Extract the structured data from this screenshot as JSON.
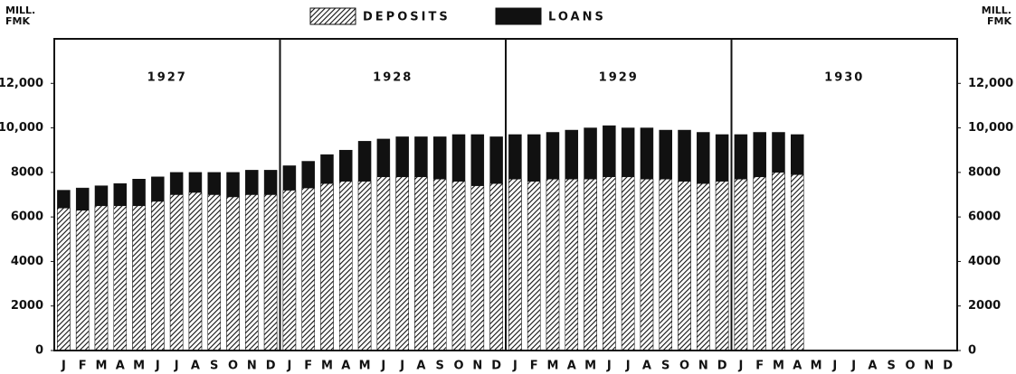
{
  "chart_data": {
    "type": "bar",
    "overlap": true,
    "y_label": "MILL. FMK",
    "y2_label": "MILL. FMK",
    "annotations": [
      "1927",
      "1928",
      "1929",
      "1930"
    ],
    "categories": [
      "J",
      "F",
      "M",
      "A",
      "M",
      "J",
      "J",
      "A",
      "S",
      "O",
      "N",
      "D",
      "J",
      "F",
      "M",
      "A",
      "M",
      "J",
      "J",
      "A",
      "S",
      "O",
      "N",
      "D",
      "J",
      "F",
      "M",
      "A",
      "M",
      "J",
      "J",
      "A",
      "S",
      "O",
      "N",
      "D",
      "J",
      "F",
      "M",
      "A",
      "M",
      "J",
      "J",
      "A",
      "S",
      "O",
      "N",
      "D"
    ],
    "series": [
      {
        "name": "LOANS",
        "color": "#111111",
        "pattern": "solid",
        "values": [
          7200,
          7300,
          7400,
          7500,
          7700,
          7800,
          8000,
          8000,
          8000,
          8000,
          8100,
          8100,
          8300,
          8500,
          8800,
          9000,
          9400,
          9500,
          9600,
          9600,
          9600,
          9700,
          9700,
          9600,
          9700,
          9700,
          9800,
          9900,
          10000,
          10100,
          10000,
          10000,
          9900,
          9900,
          9800,
          9700,
          9700,
          9800,
          9800,
          9700,
          null,
          null,
          null,
          null,
          null,
          null,
          null,
          null
        ]
      },
      {
        "name": "DEPOSITS",
        "color": "#111111",
        "pattern": "hatch",
        "values": [
          6400,
          6300,
          6500,
          6500,
          6500,
          6700,
          7000,
          7100,
          7000,
          6900,
          7000,
          7000,
          7200,
          7300,
          7500,
          7600,
          7600,
          7800,
          7800,
          7800,
          7700,
          7600,
          7400,
          7500,
          7700,
          7600,
          7700,
          7700,
          7700,
          7800,
          7800,
          7700,
          7700,
          7600,
          7500,
          7600,
          7700,
          7800,
          8000,
          7900,
          null,
          null,
          null,
          null,
          null,
          null,
          null,
          null
        ]
      }
    ],
    "legend_order": [
      1,
      0
    ],
    "ylim": [
      0,
      14000
    ],
    "yticks": [
      0,
      2000,
      4000,
      6000,
      8000,
      {
        "value": 10000,
        "label": "10,000"
      },
      {
        "value": 12000,
        "label": "12,000"
      }
    ],
    "y2lim": [
      0,
      14000
    ],
    "y2ticks": [
      0,
      2000,
      4000,
      6000,
      8000,
      {
        "value": 10000,
        "label": "10,000"
      },
      {
        "value": 12000,
        "label": "12,000"
      }
    ],
    "grid": false
  }
}
